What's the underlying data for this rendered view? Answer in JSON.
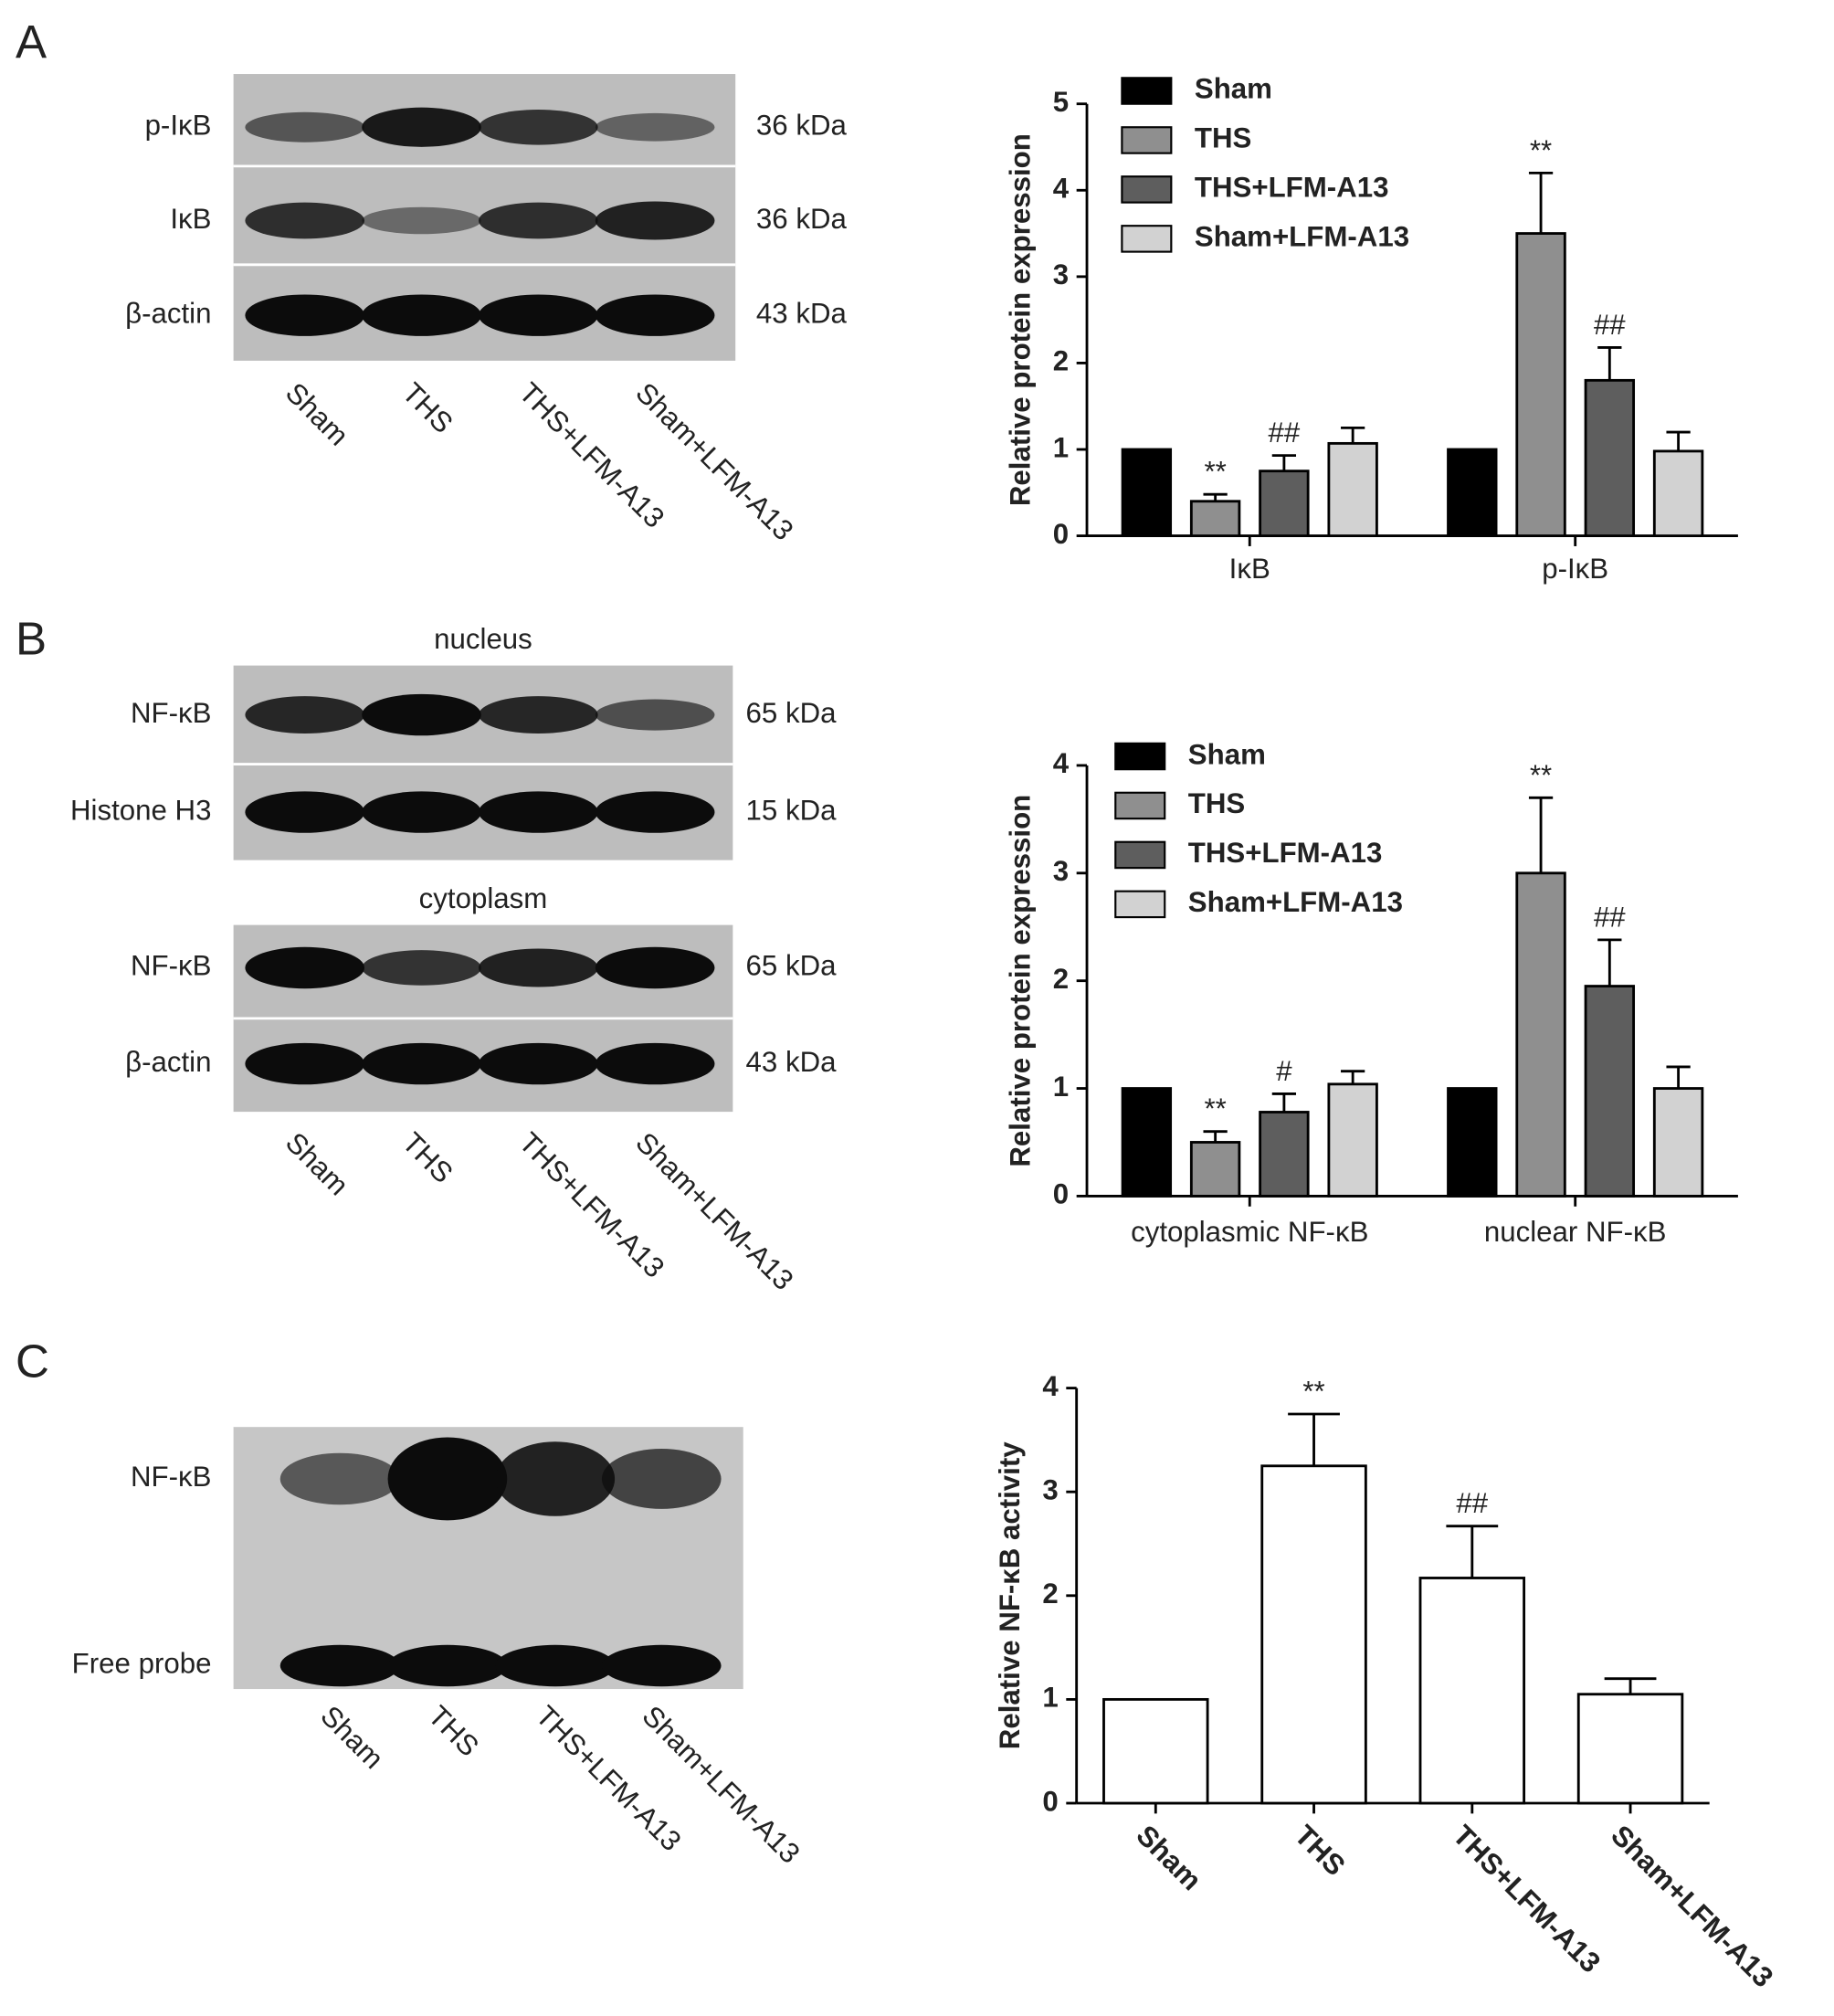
{
  "panels": [
    {
      "letter": "A",
      "sections": [
        {
          "rows": [
            {
              "label": "p-IκB",
              "kda": "36 kDa"
            },
            {
              "label": "IκB",
              "kda": "36 kDa"
            },
            {
              "label": "β-actin",
              "kda": "43 kDa"
            }
          ]
        }
      ],
      "lanes": [
        "Sham",
        "THS",
        "THS+LFM-A13",
        "Sham+LFM-A13"
      ]
    },
    {
      "letter": "B",
      "sections": [
        {
          "title": "nucleus",
          "rows": [
            {
              "label": "NF-κB",
              "kda": "65 kDa"
            },
            {
              "label": "Histone H3",
              "kda": "15 kDa"
            }
          ]
        },
        {
          "title": "cytoplasm",
          "rows": [
            {
              "label": "NF-κB",
              "kda": "65 kDa"
            },
            {
              "label": "β-actin",
              "kda": "43 kDa"
            }
          ]
        }
      ],
      "lanes": [
        "Sham",
        "THS",
        "THS+LFM-A13",
        "Sham+LFM-A13"
      ]
    },
    {
      "letter": "C",
      "sections": [
        {
          "rows": [
            {
              "label": "NF-κB"
            },
            {
              "label": "Free probe"
            }
          ]
        }
      ],
      "lanes": [
        "Sham",
        "THS",
        "THS+LFM-A13",
        "Sham+LFM-A13"
      ]
    }
  ],
  "chart_data": [
    {
      "type": "grouped-bar",
      "y_label": "Relative protein expression",
      "categories": [
        "IκB",
        "p-IκB"
      ],
      "series": [
        {
          "name": "Sham",
          "color": "#000000",
          "values": [
            1,
            1
          ],
          "errors": [
            0,
            0
          ],
          "annotations": [
            null,
            null
          ]
        },
        {
          "name": "THS",
          "color": "#8f8f8f",
          "values": [
            0.4,
            3.5
          ],
          "errors": [
            0.08,
            0.7
          ],
          "annotations": [
            "**",
            "**"
          ]
        },
        {
          "name": "THS+LFM-A13",
          "color": "#5e5e5e",
          "values": [
            0.75,
            1.8
          ],
          "errors": [
            0.18,
            0.38
          ],
          "annotations": [
            "##",
            "##"
          ]
        },
        {
          "name": "Sham+LFM-A13",
          "color": "#d2d2d2",
          "values": [
            1.07,
            0.98
          ],
          "errors": [
            0.18,
            0.22
          ],
          "annotations": [
            null,
            null
          ]
        }
      ],
      "ylim": [
        0,
        5
      ],
      "yticks": [
        0,
        1,
        2,
        3,
        4,
        5
      ],
      "legend": "upper-left"
    },
    {
      "type": "grouped-bar",
      "y_label": "Relative protein expression",
      "categories": [
        "cytoplasmic NF-κB",
        "nuclear NF-κB"
      ],
      "series": [
        {
          "name": "Sham",
          "color": "#000000",
          "values": [
            1,
            1
          ],
          "errors": [
            0,
            0
          ],
          "annotations": [
            null,
            null
          ]
        },
        {
          "name": "THS",
          "color": "#8f8f8f",
          "values": [
            0.5,
            3.0
          ],
          "errors": [
            0.1,
            0.7
          ],
          "annotations": [
            "**",
            "**"
          ]
        },
        {
          "name": "THS+LFM-A13",
          "color": "#5e5e5e",
          "values": [
            0.78,
            1.95
          ],
          "errors": [
            0.17,
            0.43
          ],
          "annotations": [
            "#",
            "##"
          ]
        },
        {
          "name": "Sham+LFM-A13",
          "color": "#d2d2d2",
          "values": [
            1.04,
            1.0
          ],
          "errors": [
            0.12,
            0.2
          ],
          "annotations": [
            null,
            null
          ]
        }
      ],
      "ylim": [
        0,
        4
      ],
      "yticks": [
        0,
        1,
        2,
        3,
        4
      ],
      "legend": "upper-left"
    },
    {
      "type": "bar",
      "y_label": "Relative NF-κB activity",
      "categories": [
        "Sham",
        "THS",
        "THS+LFM-A13",
        "Sham+LFM-A13"
      ],
      "values": [
        1,
        3.25,
        2.17,
        1.05
      ],
      "errors": [
        0,
        0.5,
        0.5,
        0.15
      ],
      "annotations": [
        null,
        "**",
        "##",
        null
      ],
      "color": "#ffffff",
      "ylim": [
        0,
        4
      ],
      "yticks": [
        0,
        1,
        2,
        3,
        4
      ]
    }
  ]
}
